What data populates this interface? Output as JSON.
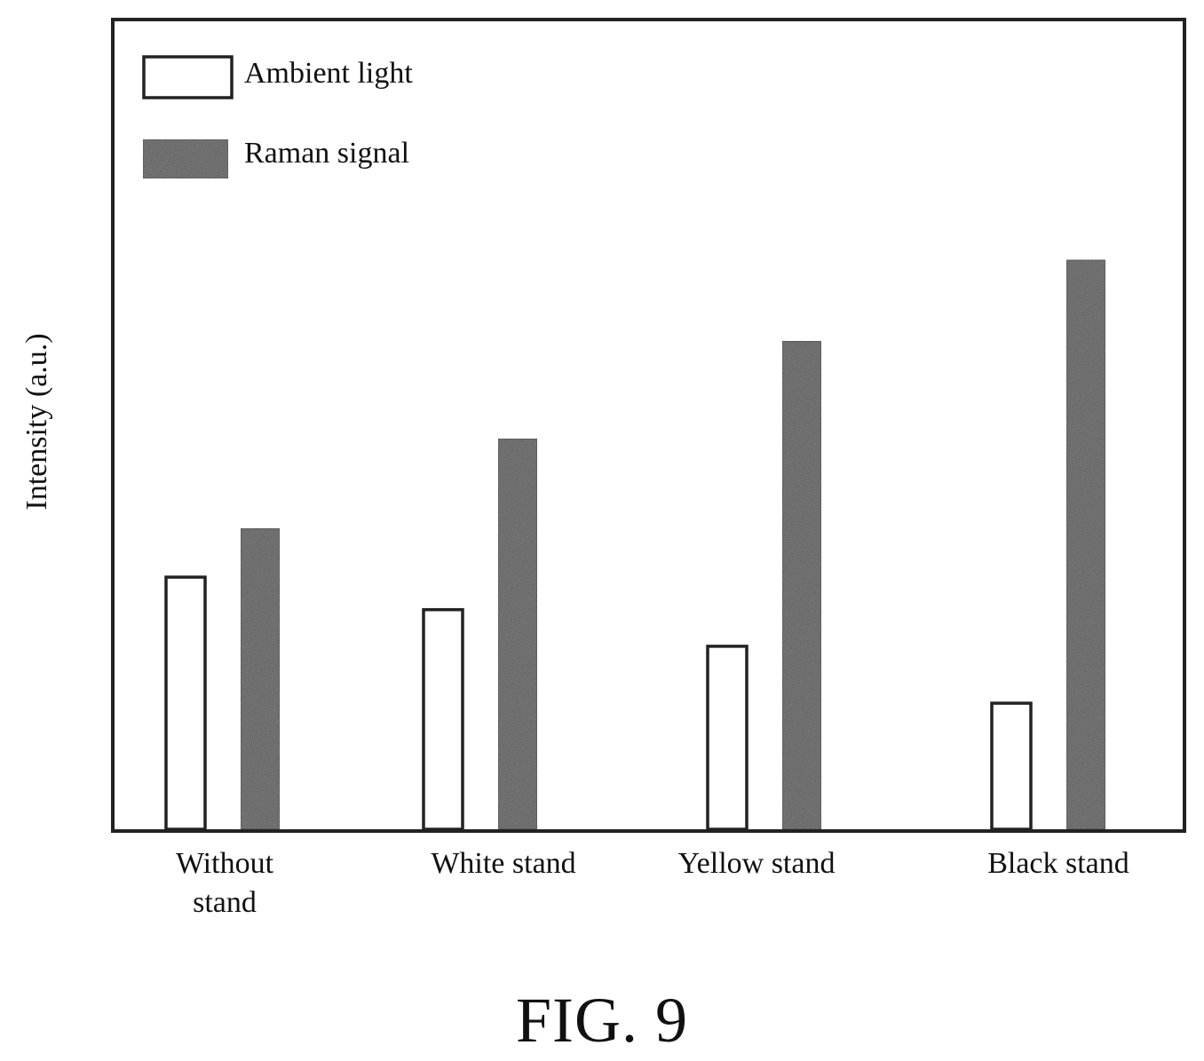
{
  "figure": {
    "caption": "FIG. 9"
  },
  "colors": {
    "ambient_fill": "#ffffff",
    "raman_fill": "#555555",
    "stroke": "#222222"
  },
  "chart_data": {
    "type": "bar",
    "title": "",
    "xlabel": "",
    "ylabel": "Intensity (a.u.)",
    "y_ticks_shown": false,
    "grid": false,
    "legend_position": "top-left",
    "categories": [
      [
        "Without",
        "stand"
      ],
      [
        "White stand"
      ],
      [
        "Yellow stand"
      ],
      [
        "Black stand"
      ]
    ],
    "ylim": [
      0,
      100
    ],
    "series": [
      {
        "name": "Ambient light",
        "style": "outline",
        "values": [
          31,
          27,
          22.5,
          15.5
        ]
      },
      {
        "name": "Raman signal",
        "style": "filled",
        "values": [
          37,
          48,
          60,
          70
        ]
      }
    ]
  }
}
